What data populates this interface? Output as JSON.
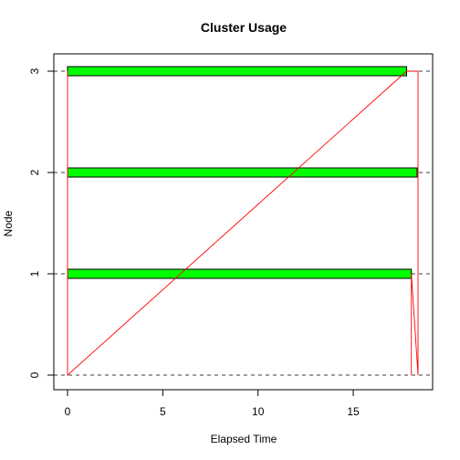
{
  "chart_data": {
    "type": "bar",
    "subtype": "cluster-usage-timeline",
    "title": "Cluster Usage",
    "xlabel": "Elapsed Time",
    "ylabel": "Node",
    "xlim": [
      0,
      18.4
    ],
    "ylim": [
      0,
      3
    ],
    "x_ticks": [
      0,
      5,
      10,
      15
    ],
    "y_ticks": [
      0,
      1,
      2,
      3
    ],
    "nodes": [
      0,
      1,
      2,
      3
    ],
    "bars": [
      {
        "node": 1,
        "start": 0.0,
        "end": 18.05
      },
      {
        "node": 2,
        "start": 0.0,
        "end": 18.35
      },
      {
        "node": 3,
        "start": 0.0,
        "end": 17.8
      }
    ],
    "master_timeline": [
      {
        "x": 0.0,
        "y": 0
      },
      {
        "x": 0.0,
        "y": 3
      },
      {
        "x": 0.0,
        "y": 2
      },
      {
        "x": 0.0,
        "y": 1
      },
      {
        "x": 0.0,
        "y": 0
      },
      {
        "x": 17.8,
        "y": 3
      },
      {
        "x": 18.4,
        "y": 3
      },
      {
        "x": 18.4,
        "y": 0
      },
      {
        "x": 18.05,
        "y": 1
      },
      {
        "x": 18.05,
        "y": 0
      }
    ],
    "colors": {
      "bar_fill": "#00ff00",
      "bar_stroke": "#000000",
      "timeline": "#ff0000",
      "idle": "#0000ff",
      "gridline": "#000000"
    },
    "grid": false,
    "node_gridlines": "dashed",
    "legend": "none"
  }
}
